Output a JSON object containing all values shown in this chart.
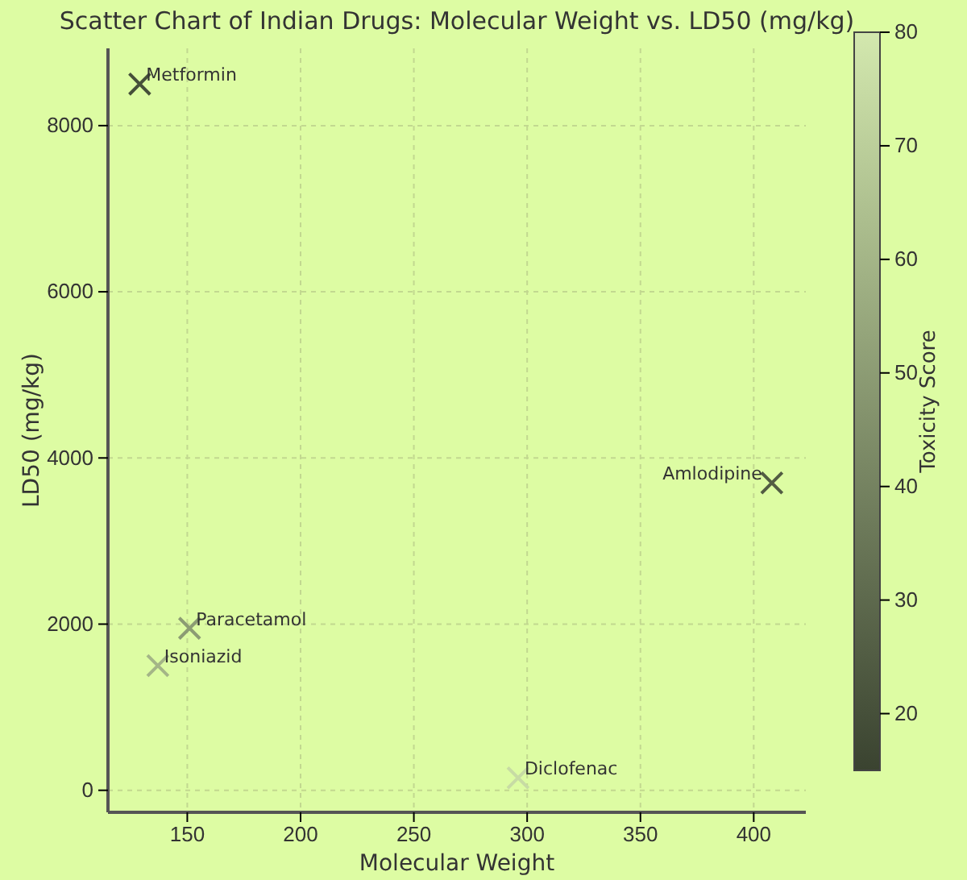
{
  "chart_data": {
    "type": "scatter",
    "title": "Scatter Chart of Indian Drugs: Molecular Weight vs. LD50 (mg/kg)",
    "xlabel": "Molecular Weight",
    "ylabel": "LD50 (mg/kg)",
    "clabel": "Toxicity Score",
    "x": [
      129,
      151,
      137,
      296,
      408
    ],
    "values": [
      8500,
      1950,
      1500,
      150,
      3700
    ],
    "cvalues": [
      20,
      50,
      60,
      75,
      25
    ],
    "clim": [
      15,
      80
    ],
    "cticks": [
      20,
      30,
      40,
      50,
      60,
      70,
      80
    ],
    "xlim": [
      115,
      423
    ],
    "xticks": [
      150,
      200,
      250,
      300,
      350,
      400
    ],
    "ylim": [
      -265,
      8930
    ],
    "yticks": [
      0,
      2000,
      4000,
      6000,
      8000
    ],
    "marker": "cross",
    "grid": true,
    "annotations": [
      {
        "text": "Metformin",
        "x": 129,
        "y": 8500
      },
      {
        "text": "Paracetamol",
        "x": 151,
        "y": 1950
      },
      {
        "text": "Isoniazid",
        "x": 137,
        "y": 1500
      },
      {
        "text": "Diclofenac",
        "x": 296,
        "y": 150
      },
      {
        "text": "Amlodipine",
        "x": 408,
        "y": 3700
      }
    ]
  }
}
